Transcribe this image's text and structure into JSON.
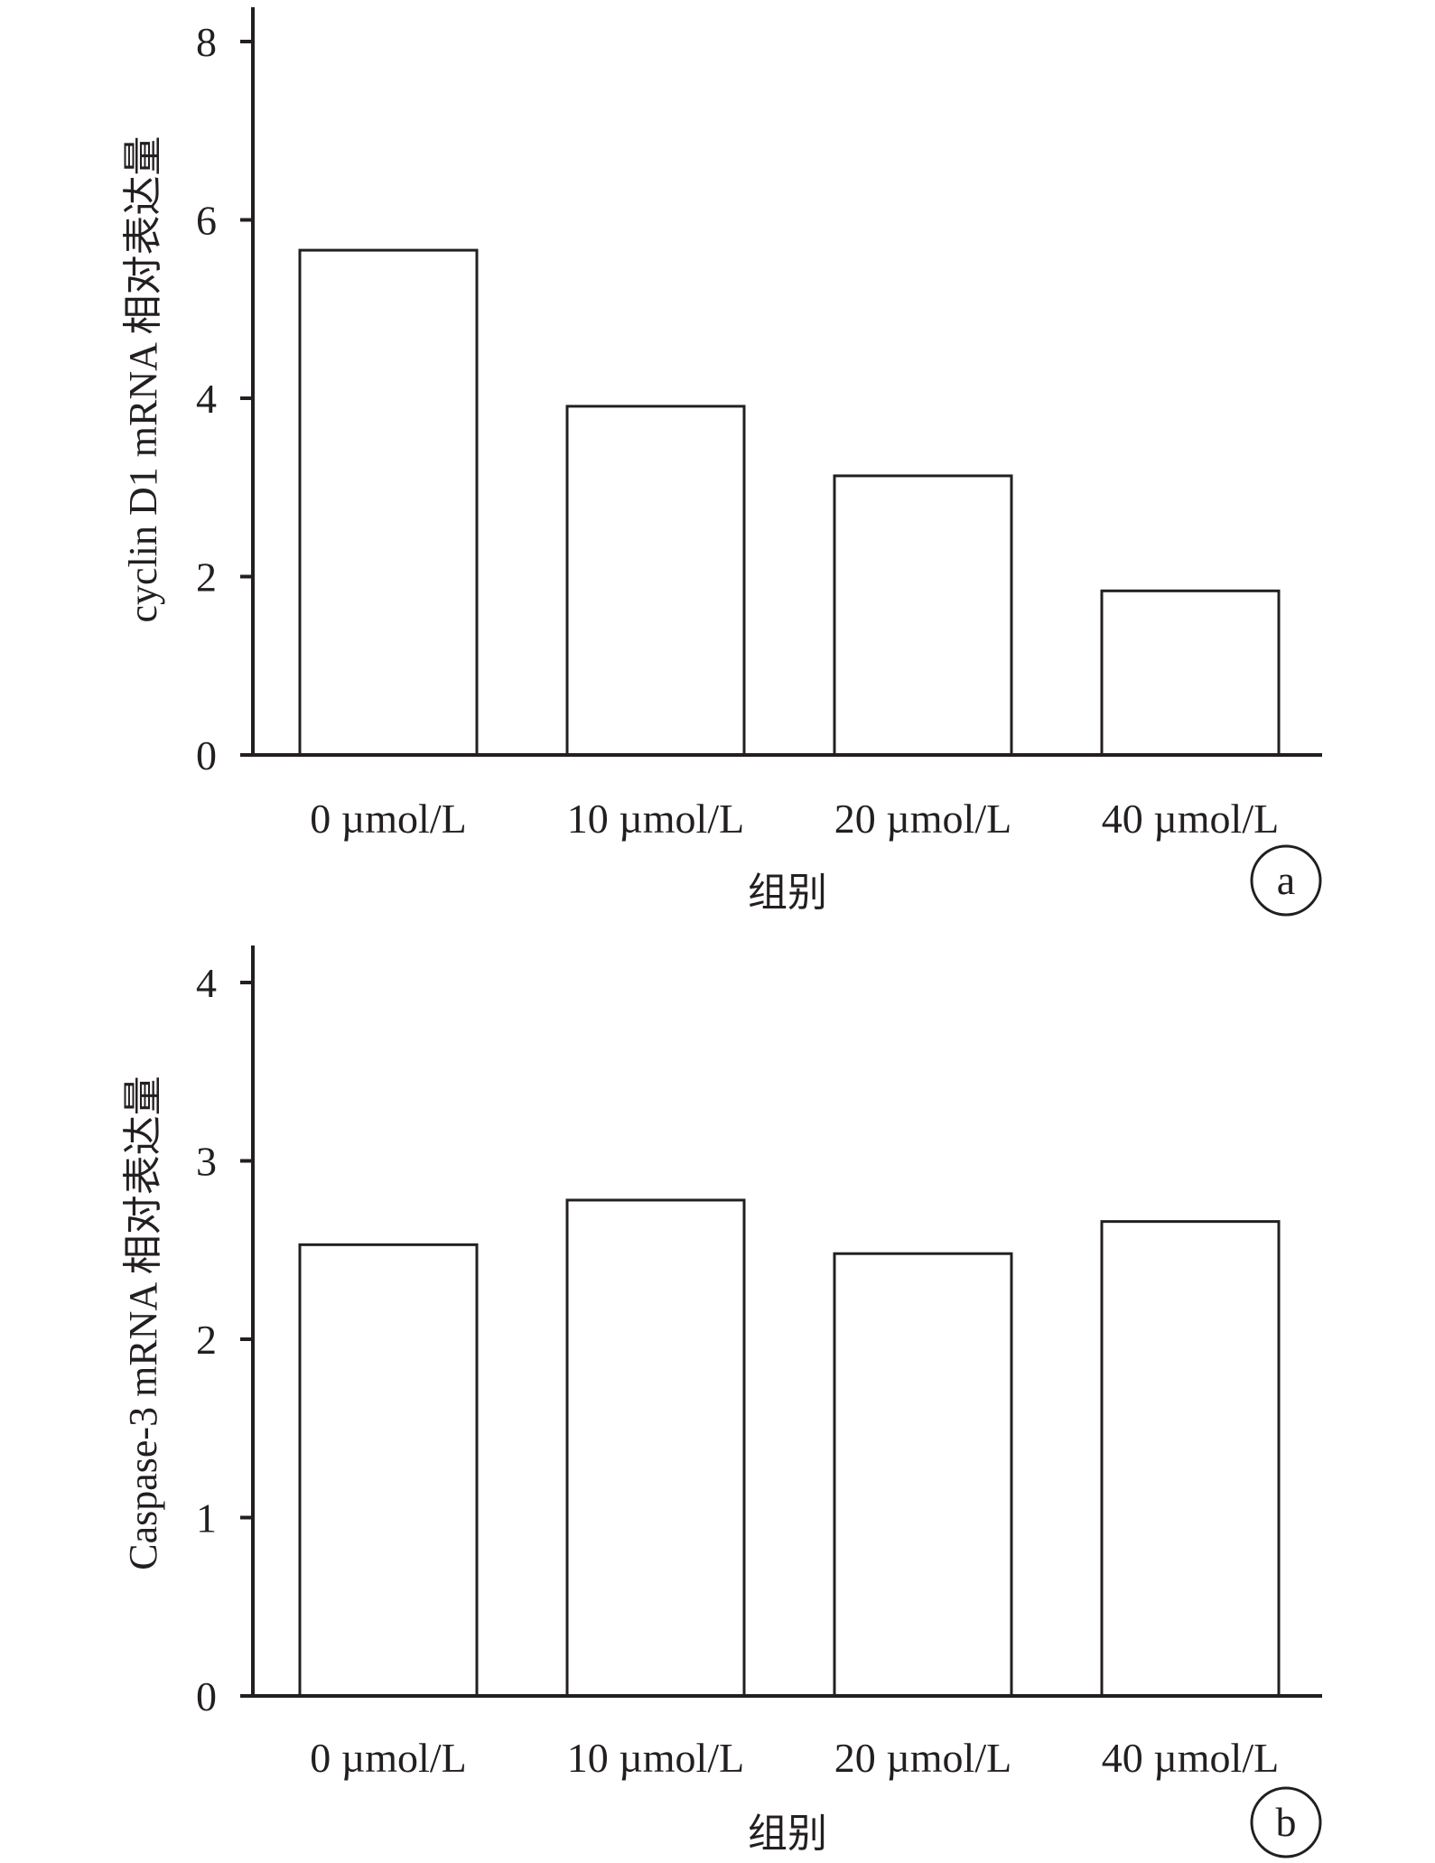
{
  "colors": {
    "ink": "#231f20",
    "bar_fill": "#ffffff"
  },
  "chart_data": [
    {
      "panel": "a",
      "type": "bar",
      "xlabel": "组别",
      "ylabel": "cyclin D1 mRNA 相对表达量",
      "categories": [
        "0 µmol/L",
        "10 µmol/L",
        "20 µmol/L",
        "40 µmol/L"
      ],
      "values": [
        5.66,
        3.91,
        3.13,
        1.84
      ],
      "ylim": [
        0,
        8
      ],
      "yticks": [
        "0",
        "2",
        "4",
        "6",
        "8"
      ],
      "grid": false,
      "legend": "none"
    },
    {
      "panel": "b",
      "type": "bar",
      "xlabel": "组别",
      "ylabel": "Caspase-3 mRNA 相对表达量",
      "categories": [
        "0 µmol/L",
        "10 µmol/L",
        "20 µmol/L",
        "40 µmol/L"
      ],
      "values": [
        2.53,
        2.78,
        2.48,
        2.66
      ],
      "ylim": [
        0,
        4
      ],
      "yticks": [
        "0",
        "1",
        "2",
        "3",
        "4"
      ],
      "grid": false,
      "legend": "none"
    }
  ]
}
